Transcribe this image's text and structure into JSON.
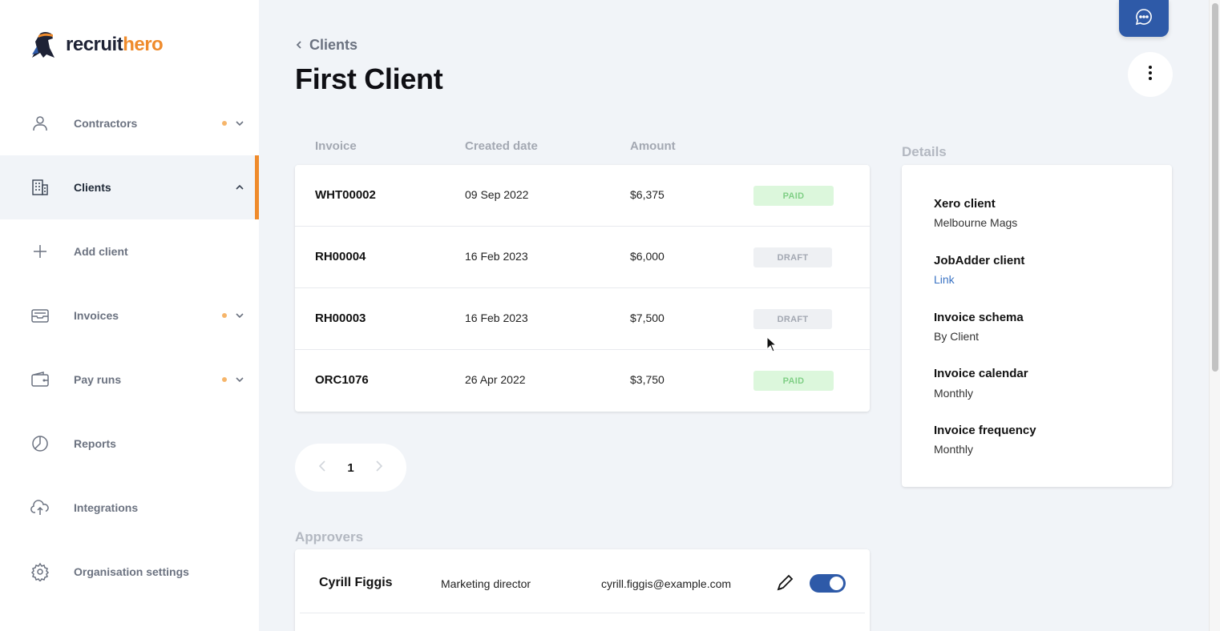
{
  "brand": {
    "name_part1": "recruit",
    "name_part2": "hero"
  },
  "sidebar": {
    "items": [
      {
        "label": "Contractors",
        "icon": "user-icon",
        "dot": true,
        "chevron": "down"
      },
      {
        "label": "Clients",
        "icon": "building-icon",
        "dot": false,
        "chevron": "up",
        "active": true
      },
      {
        "label": "Add client",
        "icon": "plus-icon",
        "dot": false,
        "chevron": ""
      },
      {
        "label": "Invoices",
        "icon": "inbox-icon",
        "dot": true,
        "chevron": "down"
      },
      {
        "label": "Pay runs",
        "icon": "wallet-icon",
        "dot": true,
        "chevron": "down"
      },
      {
        "label": "Reports",
        "icon": "pie-chart-icon",
        "dot": false,
        "chevron": ""
      },
      {
        "label": "Integrations",
        "icon": "cloud-upload-icon",
        "dot": false,
        "chevron": ""
      },
      {
        "label": "Organisation settings",
        "icon": "gear-icon",
        "dot": false,
        "chevron": ""
      }
    ]
  },
  "breadcrumb": {
    "label": "Clients"
  },
  "page": {
    "title": "First Client"
  },
  "invoices": {
    "columns": [
      "Invoice",
      "Created date",
      "Amount"
    ],
    "rows": [
      {
        "invoice": "WHT00002",
        "date": "09 Sep 2022",
        "amount": "$6,375",
        "status": "PAID"
      },
      {
        "invoice": "RH00004",
        "date": "16 Feb 2023",
        "amount": "$6,000",
        "status": "DRAFT"
      },
      {
        "invoice": "RH00003",
        "date": "16 Feb 2023",
        "amount": "$7,500",
        "status": "DRAFT"
      },
      {
        "invoice": "ORC1076",
        "date": "26 Apr 2022",
        "amount": "$3,750",
        "status": "PAID"
      }
    ]
  },
  "pagination": {
    "current": "1"
  },
  "details": {
    "title": "Details",
    "fields": [
      {
        "label": "Xero client",
        "value": "Melbourne Mags"
      },
      {
        "label": "JobAdder client",
        "value": "Link"
      },
      {
        "label": "Invoice schema",
        "value": "By Client"
      },
      {
        "label": "Invoice calendar",
        "value": "Monthly"
      },
      {
        "label": "Invoice frequency",
        "value": "Monthly"
      }
    ]
  },
  "approvers": {
    "title": "Approvers",
    "rows": [
      {
        "name": "Cyrill Figgis",
        "role": "Marketing director",
        "email": "cyrill.figgis@example.com",
        "enabled": true
      }
    ]
  },
  "colors": {
    "accent": "#ef8b2c",
    "primary": "#2e5aa8",
    "paid_bg": "#dcf7dc",
    "paid_text": "#7fcf85"
  }
}
